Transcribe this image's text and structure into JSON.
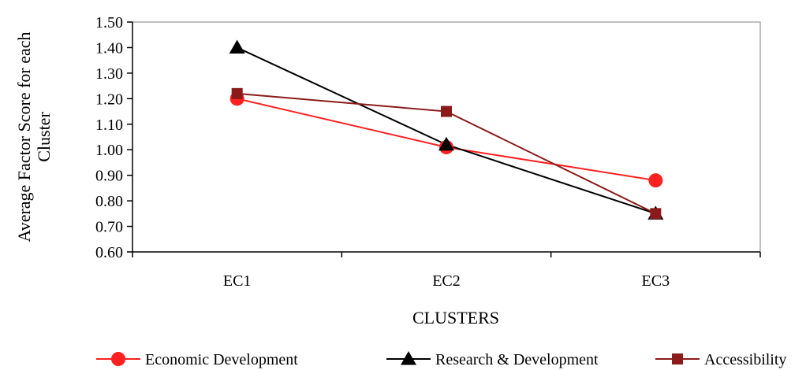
{
  "chart_data": {
    "type": "line",
    "categories": [
      "EC1",
      "EC2",
      "EC3"
    ],
    "xlabel": "CLUSTERS",
    "ylabel": "Average Factor Score for each Cluster",
    "ylabel_lines": [
      "Average Factor Score for each",
      "Cluster"
    ],
    "ylim": [
      0.6,
      1.5
    ],
    "yticks": [
      "0.60",
      "0.70",
      "0.80",
      "0.90",
      "1.00",
      "1.10",
      "1.20",
      "1.30",
      "1.40",
      "1.50"
    ],
    "grid": false,
    "legend_position": "bottom",
    "series": [
      {
        "name": "Economic Development",
        "values": [
          1.2,
          1.01,
          0.88
        ],
        "color": "#ff2020",
        "marker": "circle"
      },
      {
        "name": "Research & Development",
        "values": [
          1.4,
          1.02,
          0.75
        ],
        "color": "#000000",
        "marker": "triangle"
      },
      {
        "name": "Accessibility",
        "values": [
          1.22,
          1.15,
          0.75
        ],
        "color": "#8b1a1a",
        "marker": "square"
      }
    ]
  }
}
